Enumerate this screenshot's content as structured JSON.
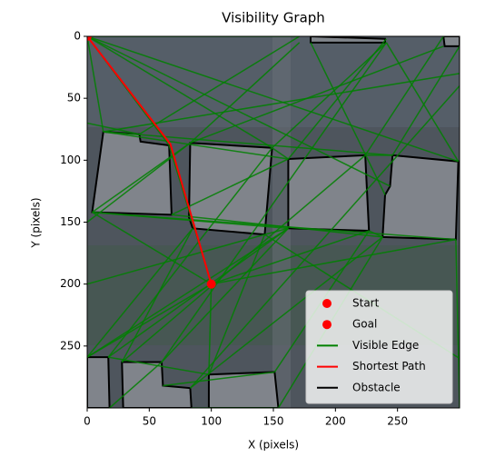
{
  "chart_data": {
    "type": "visibility-graph",
    "title": "Visibility Graph",
    "xlabel": "X (pixels)",
    "ylabel": "Y (pixels)",
    "xlim": [
      0,
      300
    ],
    "ylim": [
      300,
      0
    ],
    "xticks": [
      0,
      50,
      100,
      150,
      200,
      250
    ],
    "yticks": [
      0,
      50,
      100,
      150,
      200,
      250
    ],
    "legend": "lower right",
    "start": {
      "name": "Start",
      "color": "#ff0000",
      "x": 0,
      "y": 0
    },
    "goal": {
      "name": "Goal",
      "color": "#ff0000",
      "x": 100,
      "y": 200
    },
    "edges": {
      "name": "Visible Edge",
      "color": "#008000",
      "segments": [
        [
          0,
          0,
          66,
          88
        ],
        [
          0,
          0,
          13,
          77
        ],
        [
          0,
          0,
          171,
          0
        ],
        [
          0,
          0,
          299,
          101
        ],
        [
          0,
          0,
          149,
          90
        ],
        [
          4,
          142,
          83,
          86
        ],
        [
          4,
          142,
          162,
          155
        ],
        [
          4,
          142,
          100,
          200
        ],
        [
          4,
          142,
          297,
          164
        ],
        [
          13,
          77,
          162,
          99
        ],
        [
          13,
          77,
          246,
          96
        ],
        [
          42,
          79,
          171,
          0
        ],
        [
          66,
          88,
          100,
          200
        ],
        [
          68,
          144,
          162,
          99
        ],
        [
          68,
          144,
          238,
          162
        ],
        [
          83,
          86,
          171,
          5
        ],
        [
          83,
          86,
          287,
          8
        ],
        [
          149,
          90,
          241,
          5
        ],
        [
          149,
          90,
          162,
          99
        ],
        [
          143,
          160,
          162,
          155
        ],
        [
          143,
          160,
          98,
          273
        ],
        [
          143,
          160,
          300,
          260
        ],
        [
          85,
          155,
          0,
          259
        ],
        [
          85,
          155,
          28,
          263
        ],
        [
          162,
          99,
          241,
          2
        ],
        [
          224,
          96,
          287,
          0
        ],
        [
          224,
          96,
          246,
          96
        ],
        [
          227,
          157,
          238,
          162
        ],
        [
          227,
          157,
          151,
          271
        ],
        [
          162,
          155,
          17,
          259
        ],
        [
          162,
          155,
          60,
          263
        ],
        [
          246,
          96,
          300,
          8
        ],
        [
          299,
          101,
          241,
          5
        ],
        [
          297,
          164,
          300,
          300
        ],
        [
          238,
          162,
          154,
          300
        ],
        [
          238,
          162,
          83,
          284
        ],
        [
          240,
          128,
          180,
          5
        ],
        [
          244,
          121,
          0,
          0
        ],
        [
          100,
          200,
          0,
          259
        ],
        [
          100,
          200,
          98,
          273
        ],
        [
          100,
          200,
          227,
          157
        ],
        [
          100,
          200,
          297,
          164
        ],
        [
          17,
          259,
          98,
          273
        ],
        [
          18,
          300,
          60,
          263
        ],
        [
          61,
          282,
          151,
          271
        ],
        [
          84,
          300,
          154,
          300
        ],
        [
          0,
          200,
          143,
          160
        ],
        [
          0,
          150,
          83,
          86
        ],
        [
          0,
          70,
          42,
          79
        ],
        [
          0,
          259,
          162,
          155
        ],
        [
          17,
          259,
          149,
          90
        ],
        [
          28,
          263,
          224,
          96
        ],
        [
          83,
          284,
          300,
          40
        ],
        [
          60,
          263,
          241,
          5
        ],
        [
          13,
          77,
          300,
          30
        ]
      ]
    },
    "path": {
      "name": "Shortest Path",
      "color": "#ff0000",
      "x": [
        0,
        67,
        100
      ],
      "y": [
        0,
        87,
        200
      ]
    },
    "obstacles": {
      "name": "Obstacle",
      "color": "#000000",
      "polygons": [
        [
          [
            13,
            77
          ],
          [
            42,
            79
          ],
          [
            43,
            85
          ],
          [
            66,
            88
          ],
          [
            68,
            144
          ],
          [
            4,
            142
          ]
        ],
        [
          [
            83,
            86
          ],
          [
            149,
            90
          ],
          [
            143,
            160
          ],
          [
            85,
            155
          ],
          [
            82,
            146
          ]
        ],
        [
          [
            162,
            99
          ],
          [
            224,
            96
          ],
          [
            227,
            157
          ],
          [
            162,
            155
          ]
        ],
        [
          [
            246,
            96
          ],
          [
            299,
            101
          ],
          [
            297,
            164
          ],
          [
            238,
            162
          ],
          [
            240,
            128
          ],
          [
            244,
            121
          ]
        ],
        [
          [
            0,
            259
          ],
          [
            17,
            259
          ],
          [
            18,
            300
          ],
          [
            0,
            300
          ]
        ],
        [
          [
            28,
            263
          ],
          [
            60,
            263
          ],
          [
            61,
            282
          ],
          [
            83,
            284
          ],
          [
            84,
            300
          ],
          [
            29,
            300
          ]
        ],
        [
          [
            98,
            273
          ],
          [
            151,
            271
          ],
          [
            154,
            300
          ],
          [
            98,
            300
          ]
        ],
        [
          [
            180,
            0
          ],
          [
            240,
            2
          ],
          [
            240,
            5
          ],
          [
            180,
            5
          ]
        ],
        [
          [
            287,
            0
          ],
          [
            300,
            0
          ],
          [
            300,
            8
          ],
          [
            288,
            8
          ]
        ]
      ]
    }
  }
}
